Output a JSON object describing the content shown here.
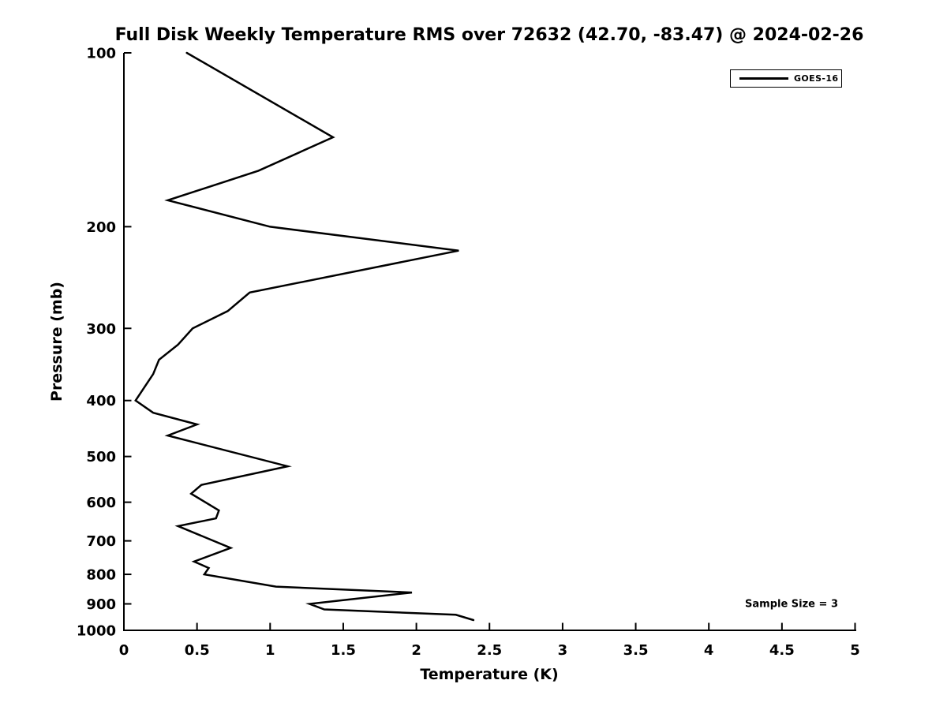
{
  "figure": {
    "background": "#ffffff",
    "foreground": "#000000"
  },
  "chart_data": {
    "type": "line",
    "title": "Full Disk Weekly Temperature RMS over 72632 (42.70, -83.47) @ 2024-02-26",
    "xlabel": "Temperature (K)",
    "ylabel": "Pressure (mb)",
    "xlim": [
      0,
      5
    ],
    "xticks": {
      "values": [
        0,
        0.5,
        1,
        1.5,
        2,
        2.5,
        3,
        3.5,
        4,
        4.5,
        5
      ],
      "labels": [
        "0",
        "0.5",
        "1",
        "1.5",
        "2",
        "2.5",
        "3",
        "3.5",
        "4",
        "4.5",
        "5"
      ]
    },
    "yscale": "log",
    "y_inverted": true,
    "ylim": [
      100,
      1000
    ],
    "yticks": {
      "values": [
        100,
        200,
        300,
        400,
        500,
        600,
        700,
        800,
        900,
        1000
      ],
      "labels": [
        "100",
        "200",
        "300",
        "400",
        "500",
        "600",
        "700",
        "800",
        "900",
        "1000"
      ]
    },
    "grid": false,
    "legend": {
      "position": "top-right",
      "entries": [
        {
          "label": "GOES-16",
          "color": "#000000",
          "line_width": 3
        }
      ]
    },
    "annotations": [
      {
        "text": "Sample Size = 3",
        "location": "bottom-right-inside"
      }
    ],
    "series": [
      {
        "name": "GOES-16",
        "color": "#000000",
        "line_width": 2.5,
        "pressure_mb": [
          100,
          140,
          160,
          180,
          200,
          220,
          260,
          280,
          300,
          320,
          340,
          360,
          400,
          420,
          440,
          460,
          520,
          560,
          580,
          620,
          640,
          660,
          720,
          760,
          780,
          800,
          840,
          860,
          900,
          920,
          940,
          960
        ],
        "rms_k": [
          0.43,
          1.43,
          0.92,
          0.3,
          1.0,
          2.29,
          0.86,
          0.71,
          0.47,
          0.37,
          0.24,
          0.2,
          0.08,
          0.2,
          0.5,
          0.3,
          1.12,
          0.53,
          0.46,
          0.65,
          0.63,
          0.37,
          0.73,
          0.48,
          0.58,
          0.55,
          1.04,
          1.97,
          1.27,
          1.37,
          2.27,
          2.39
        ]
      }
    ]
  }
}
